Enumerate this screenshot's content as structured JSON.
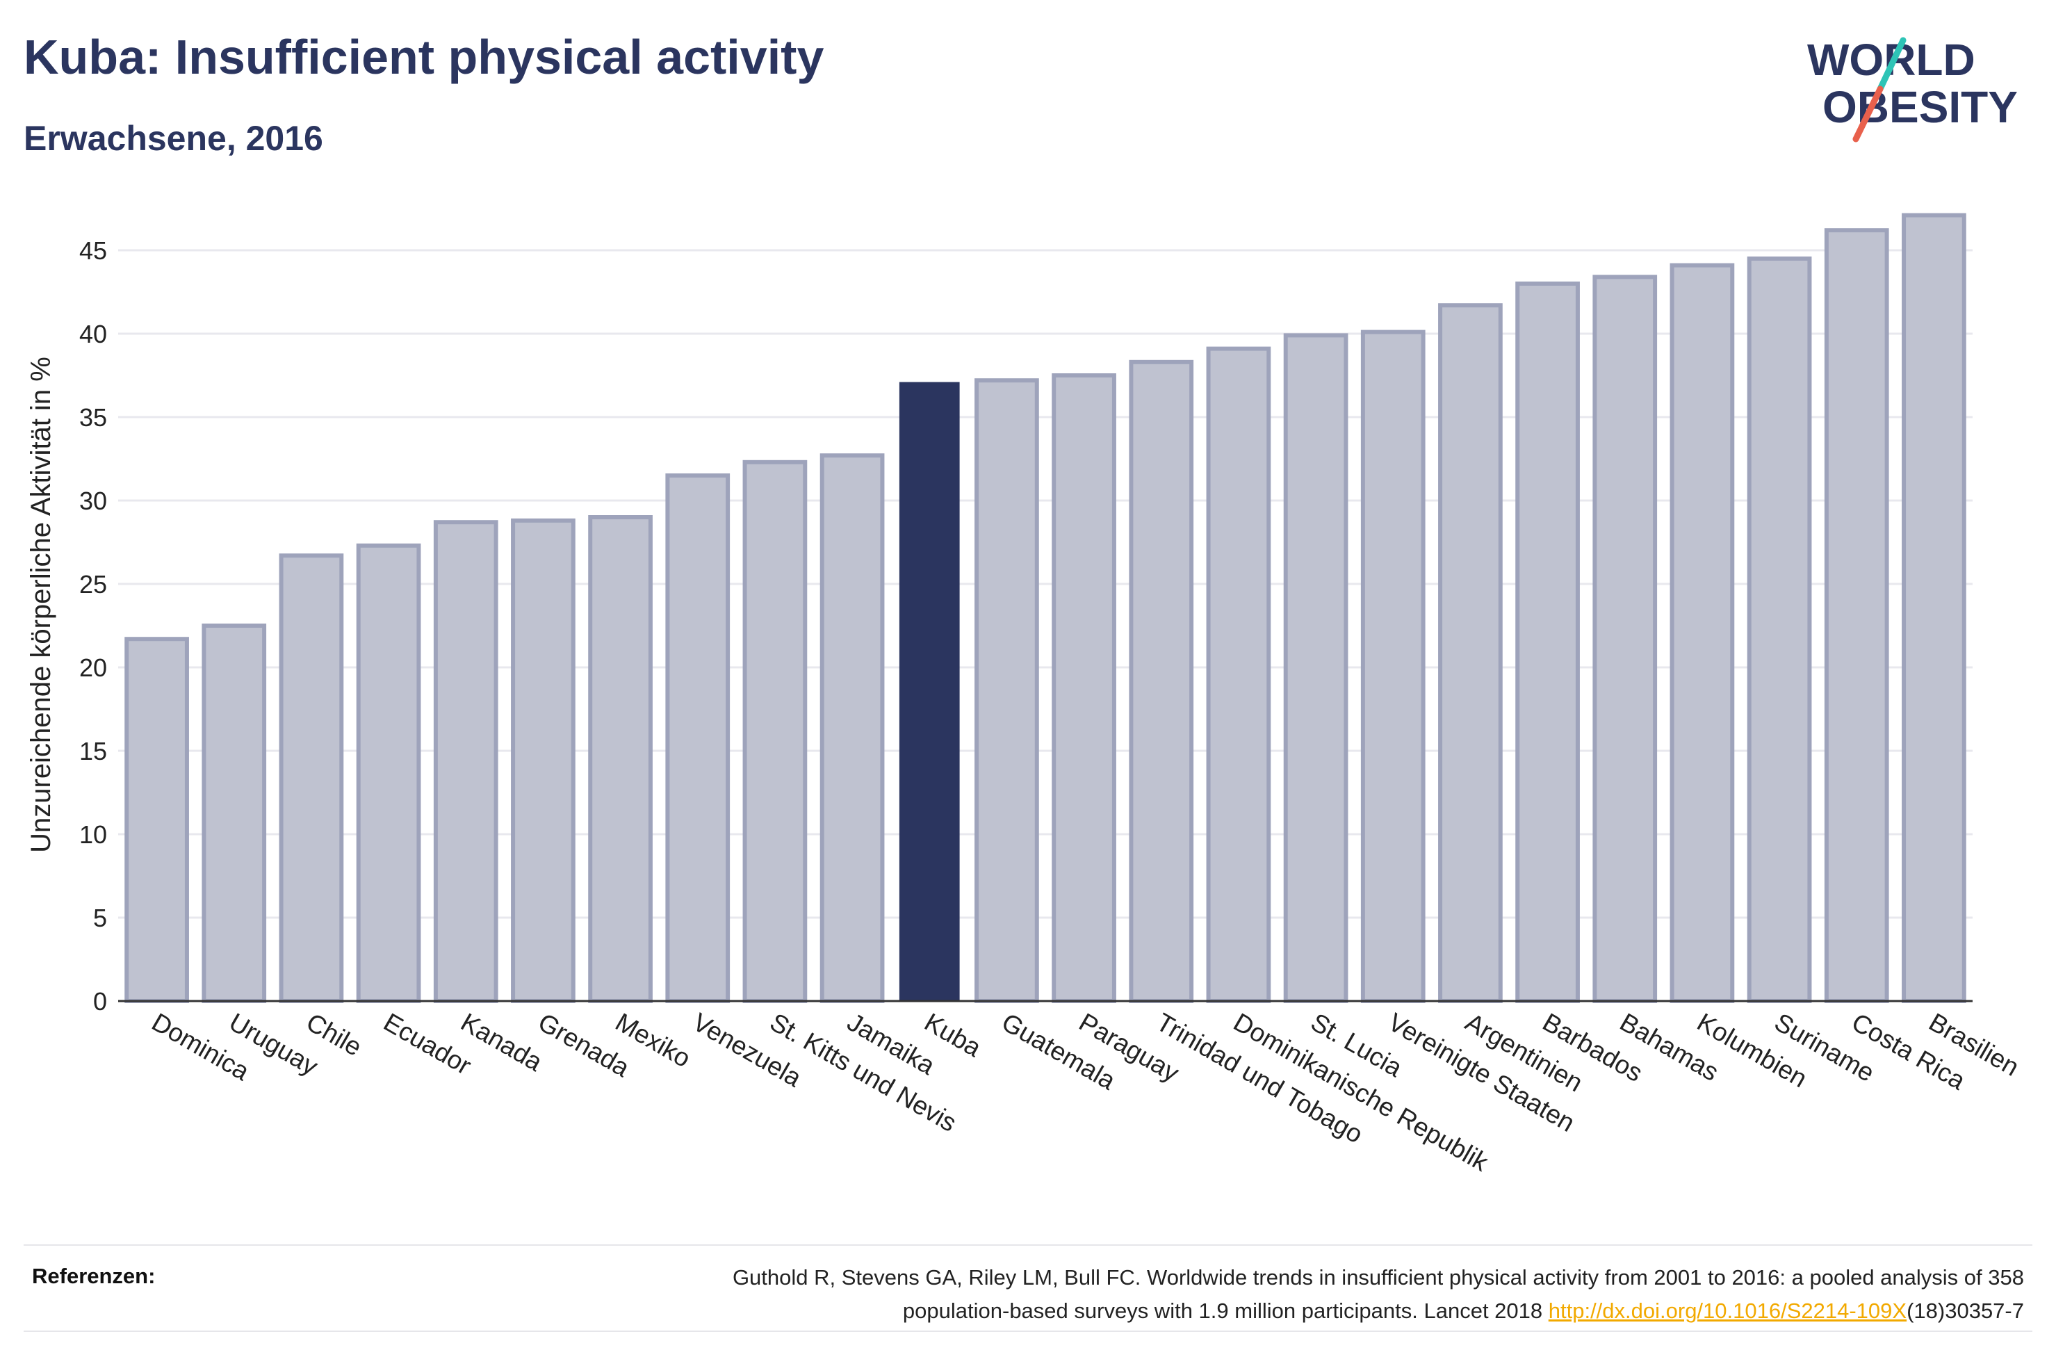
{
  "header": {
    "title": "Kuba: Insufficient physical activity",
    "subtitle": "Erwachsene, 2016"
  },
  "logo": {
    "line1": "WORLD",
    "line2": "OBESITY",
    "colors": {
      "text": "#2b355f",
      "slash_teal": "#2ec4b6",
      "slash_red": "#e8604c"
    }
  },
  "chart_data": {
    "type": "bar",
    "title": "",
    "xlabel": "",
    "ylabel": "Unzureichende körperliche Aktivität in %",
    "ylim": [
      0,
      47.5
    ],
    "yticks": [
      0,
      5,
      10,
      15,
      20,
      25,
      30,
      35,
      40,
      45
    ],
    "grid": true,
    "highlight": "Kuba",
    "colors": {
      "bar": "#bfc2d0",
      "bar_stroke": "#9ea3bb",
      "highlight": "#2b355f",
      "grid": "#e8e8ee",
      "axis": "#333333"
    },
    "categories": [
      "Dominica",
      "Uruguay",
      "Chile",
      "Ecuador",
      "Kanada",
      "Grenada",
      "Mexiko",
      "Venezuela",
      "St. Kitts und Nevis",
      "Jamaika",
      "Kuba",
      "Guatemala",
      "Paraguay",
      "Trinidad und Tobago",
      "Dominikanische Republik",
      "St. Lucia",
      "Vereinigte Staaten",
      "Argentinien",
      "Barbados",
      "Bahamas",
      "Kolumbien",
      "Suriname",
      "Costa Rica",
      "Brasilien"
    ],
    "values": [
      21.7,
      22.5,
      26.7,
      27.3,
      28.7,
      28.8,
      29.0,
      31.5,
      32.3,
      32.7,
      37.1,
      37.2,
      37.5,
      38.3,
      39.1,
      39.9,
      40.1,
      41.7,
      43.0,
      43.4,
      44.1,
      44.5,
      46.2,
      47.1
    ]
  },
  "references": {
    "label": "Referenzen:",
    "text_line1": "Guthold R, Stevens GA, Riley LM, Bull FC. Worldwide trends in insufficient physical activity from 2001 to 2016: a pooled analysis of 358",
    "text_line2_pre": "population-based surveys with 1.9 million participants. Lancet 2018 ",
    "link": "http://dx.doi.org/10.1016/S2214-109X",
    "text_line2_post": "(18)30357-7"
  }
}
